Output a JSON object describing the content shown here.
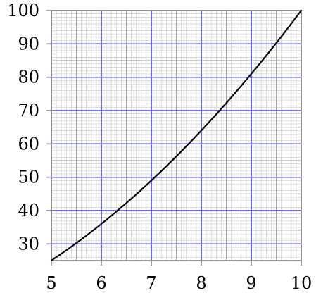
{
  "chart_data": {
    "type": "line",
    "title": "",
    "xlabel": "",
    "ylabel": "",
    "xlim": [
      5,
      10
    ],
    "ylim": [
      25,
      100
    ],
    "x_ticks": [
      5,
      6,
      7,
      8,
      9,
      10
    ],
    "x_tick_labels": [
      "5",
      "6",
      "7",
      "8",
      "9",
      "10"
    ],
    "y_ticks": [
      30,
      40,
      50,
      60,
      70,
      80,
      90,
      100
    ],
    "y_tick_labels": [
      "30",
      "40",
      "50",
      "60",
      "70",
      "80",
      "90",
      "100"
    ],
    "grid": true,
    "grid_minor_step": {
      "x": 0.1,
      "y": 1
    },
    "grid_mid_step": {
      "x": 0.5,
      "y": 5
    },
    "series": [
      {
        "x": [
          5,
          5.5,
          6,
          6.5,
          7,
          7.5,
          8,
          8.5,
          9,
          9.5,
          10
        ],
        "y": [
          25,
          30.25,
          36,
          42.25,
          49,
          56.25,
          64,
          72.25,
          81,
          90.25,
          100
        ],
        "color": "#000000"
      }
    ],
    "colors": {
      "major_grid": "#1f1fd6",
      "mid_grid": "#9a9a9a",
      "minor_grid": "#c8c8c8",
      "axis": "#808080",
      "curve": "#000000"
    }
  }
}
